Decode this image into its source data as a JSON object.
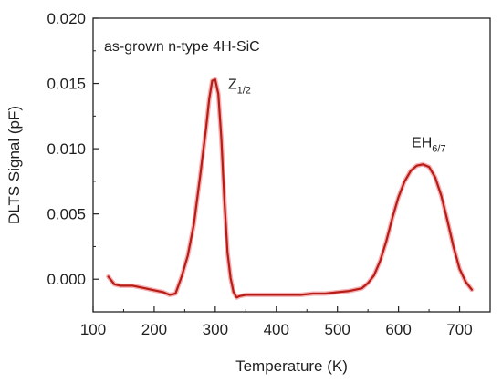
{
  "chart_data": {
    "type": "line",
    "title": "",
    "xlabel": "Temperature (K)",
    "ylabel": "DLTS Signal (pF)",
    "xlim": [
      100,
      750
    ],
    "ylim": [
      -0.0025,
      0.02
    ],
    "xticks": [
      100,
      200,
      300,
      400,
      500,
      600,
      700
    ],
    "xtick_labels": [
      "100",
      "200",
      "300",
      "400",
      "500",
      "600",
      "700"
    ],
    "yticks": [
      0.0,
      0.005,
      0.01,
      0.015,
      0.02
    ],
    "ytick_labels": [
      "0.000",
      "0.005",
      "0.010",
      "0.015",
      "0.020"
    ],
    "grid": false,
    "legend": "none",
    "annotations": [
      {
        "text": "as-grown n-type 4H-SiC"
      },
      {
        "text": "Z",
        "sub": "1/2",
        "x": 300,
        "y": 0.0153
      },
      {
        "text": "EH",
        "sub": "6/7",
        "x": 635,
        "y": 0.0088
      }
    ],
    "series": [
      {
        "color": "#b81c14",
        "x": [
          125,
          135,
          145,
          155,
          165,
          175,
          185,
          195,
          205,
          215,
          225,
          235,
          245,
          255,
          265,
          275,
          285,
          290,
          295,
          300,
          305,
          310,
          315,
          320,
          325,
          330,
          335,
          340,
          350,
          360,
          380,
          400,
          420,
          440,
          460,
          480,
          500,
          520,
          540,
          550,
          560,
          570,
          580,
          590,
          600,
          610,
          620,
          630,
          640,
          650,
          660,
          670,
          680,
          690,
          700,
          710,
          720
        ],
        "y": [
          0.0002,
          -0.0004,
          -0.0005,
          -0.0005,
          -0.0005,
          -0.0006,
          -0.0007,
          -0.0008,
          -0.0009,
          -0.001,
          -0.0012,
          -0.0011,
          0.0002,
          0.0018,
          0.0042,
          0.0078,
          0.0116,
          0.0138,
          0.0152,
          0.0153,
          0.0142,
          0.0108,
          0.006,
          0.0021,
          0.0001,
          -0.001,
          -0.0014,
          -0.0013,
          -0.0012,
          -0.0012,
          -0.0012,
          -0.0012,
          -0.0012,
          -0.0012,
          -0.0011,
          -0.0011,
          -0.001,
          -0.0009,
          -0.0007,
          -0.0003,
          0.0003,
          0.0014,
          0.0029,
          0.0047,
          0.0063,
          0.0075,
          0.0083,
          0.0087,
          0.0088,
          0.0086,
          0.0078,
          0.0064,
          0.0045,
          0.0025,
          0.0008,
          -0.0002,
          -0.0008
        ]
      }
    ]
  }
}
